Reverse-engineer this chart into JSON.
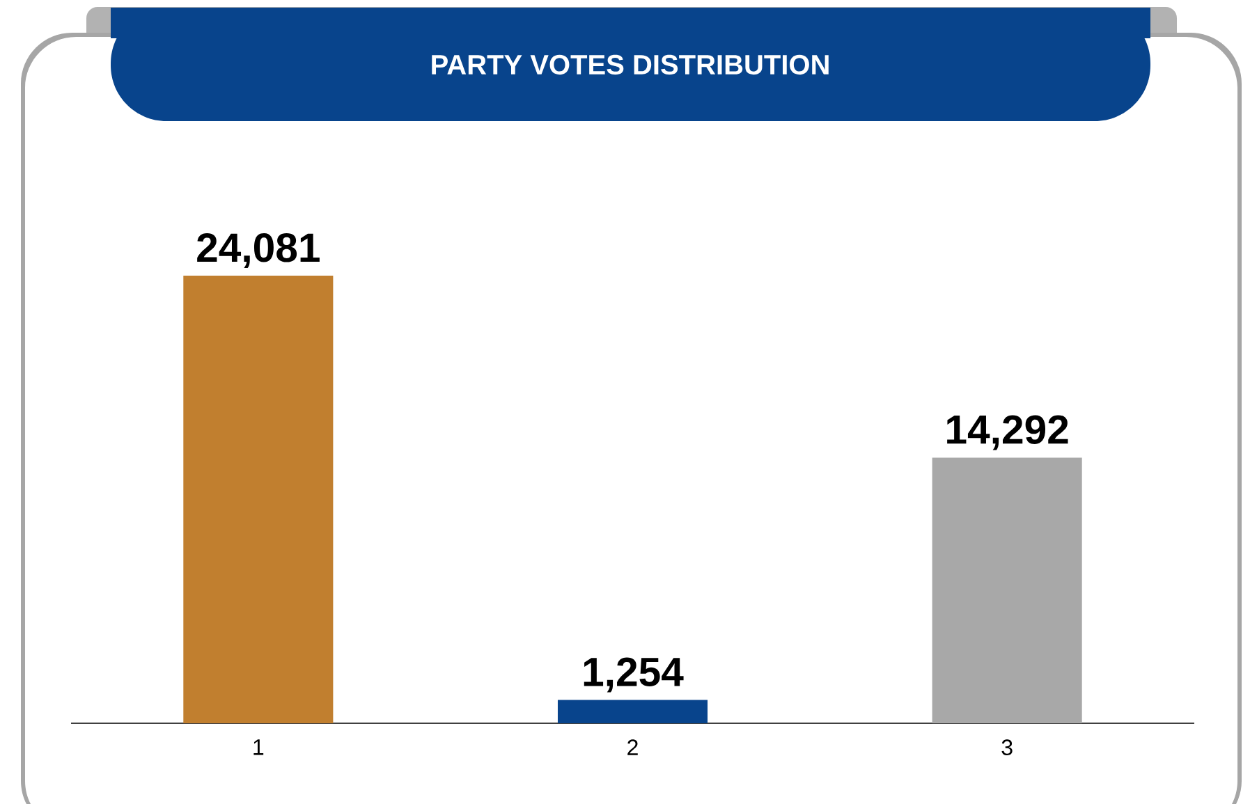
{
  "chart_data": {
    "type": "bar",
    "title": "PARTY VOTES DISTRIBUTION",
    "categories": [
      "1",
      "2",
      "3"
    ],
    "values": [
      24081,
      1254,
      14292
    ],
    "colors": [
      "#c17f2f",
      "#08448c",
      "#a8a8a8"
    ],
    "value_labels": [
      "24,081",
      "1,254",
      "14,292"
    ]
  }
}
